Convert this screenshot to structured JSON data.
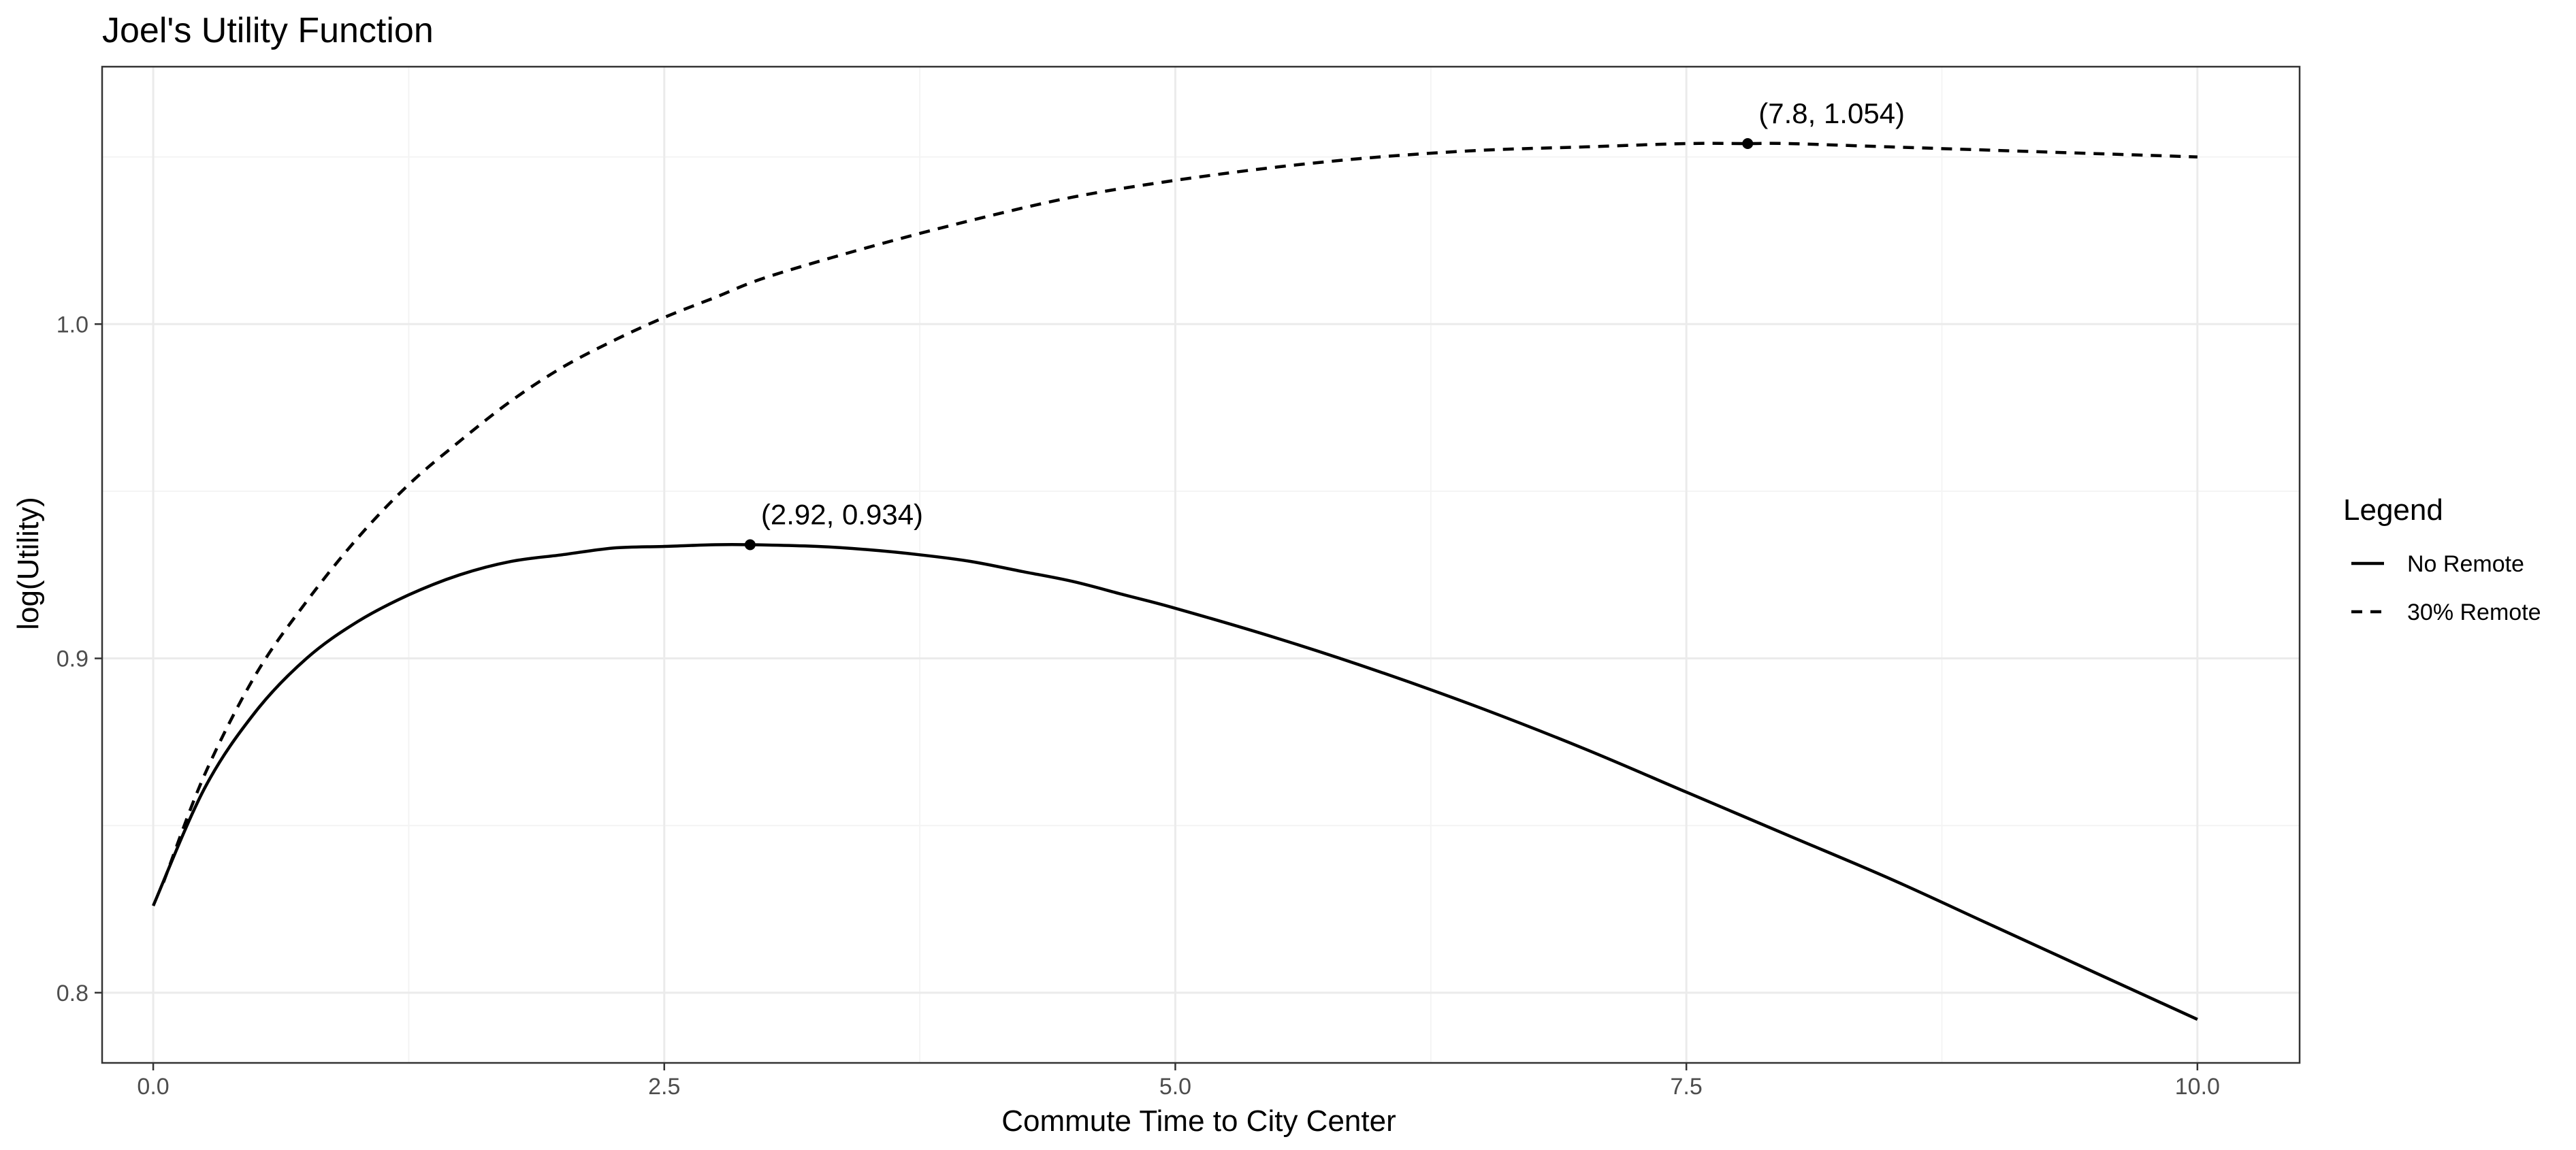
{
  "chart_data": {
    "type": "line",
    "title": "Joel's Utility Function",
    "xlabel": "Commute Time to City Center",
    "ylabel": "log(Utility)",
    "xlim": [
      -0.25,
      10.5
    ],
    "ylim": [
      0.779,
      1.077
    ],
    "x_ticks": [
      0.0,
      2.5,
      5.0,
      7.5,
      10.0
    ],
    "x_tick_labels": [
      "0.0",
      "2.5",
      "5.0",
      "7.5",
      "10.0"
    ],
    "y_ticks": [
      0.8,
      0.9,
      1.0
    ],
    "y_tick_labels": [
      "0.8",
      "0.9",
      "1.0"
    ],
    "grid": true,
    "legend": {
      "title": "Legend",
      "position": "right",
      "entries": [
        {
          "label": "No Remote",
          "linetype": "solid"
        },
        {
          "label": "30% Remote",
          "linetype": "dashed"
        }
      ]
    },
    "series": [
      {
        "name": "No Remote",
        "linetype": "solid",
        "x": [
          0,
          0.25,
          0.5,
          0.75,
          1.0,
          1.25,
          1.5,
          1.75,
          2.0,
          2.25,
          2.5,
          2.75,
          2.92,
          3.25,
          3.5,
          3.75,
          4.0,
          4.25,
          4.5,
          4.75,
          5.0,
          5.5,
          6.0,
          6.5,
          7.0,
          7.5,
          8.0,
          8.5,
          9.0,
          9.5,
          10.0
        ],
        "y": [
          0.826,
          0.861,
          0.884,
          0.9,
          0.911,
          0.919,
          0.925,
          0.929,
          0.931,
          0.933,
          0.9335,
          0.934,
          0.934,
          0.9335,
          0.9325,
          0.931,
          0.929,
          0.926,
          0.923,
          0.919,
          0.915,
          0.906,
          0.896,
          0.885,
          0.873,
          0.86,
          0.847,
          0.834,
          0.82,
          0.806,
          0.792
        ]
      },
      {
        "name": "30% Remote",
        "linetype": "dashed",
        "x": [
          0.05,
          0.25,
          0.5,
          0.75,
          1.0,
          1.25,
          1.5,
          1.75,
          2.0,
          2.25,
          2.5,
          2.75,
          3.0,
          3.5,
          4.0,
          4.5,
          5.0,
          5.5,
          6.0,
          6.5,
          7.0,
          7.5,
          7.8,
          8.0,
          8.5,
          9.0,
          9.5,
          10.0
        ],
        "y": [
          0.833,
          0.865,
          0.895,
          0.917,
          0.936,
          0.952,
          0.965,
          0.977,
          0.987,
          0.995,
          1.002,
          1.008,
          1.014,
          1.023,
          1.031,
          1.038,
          1.043,
          1.047,
          1.05,
          1.052,
          1.053,
          1.054,
          1.054,
          1.054,
          1.053,
          1.052,
          1.051,
          1.05
        ]
      }
    ],
    "annotations": [
      {
        "text": "(2.92, 0.934)",
        "x": 2.92,
        "y": 0.934
      },
      {
        "text": "(7.8, 1.054)",
        "x": 7.8,
        "y": 1.054
      }
    ]
  }
}
